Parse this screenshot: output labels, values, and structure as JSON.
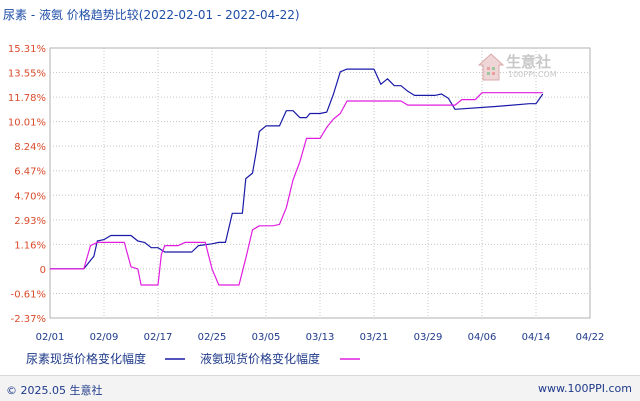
{
  "chart_data": {
    "type": "line",
    "title": "尿素 - 液氨 价格趋势比较(2022-02-01 - 2022-04-22)",
    "x_tick_labels": [
      "02/01",
      "02/09",
      "02/17",
      "02/25",
      "03/05",
      "03/13",
      "03/21",
      "03/29",
      "04/06",
      "04/14",
      "04/22"
    ],
    "y_tick_labels": [
      "15.31%",
      "13.55%",
      "11.78%",
      "10.01%",
      "8.24%",
      "6.47%",
      "4.70%",
      "2.93%",
      "1.16%",
      "0",
      "-0.61%",
      "-2.37%"
    ],
    "y_tick_values": [
      15.31,
      13.55,
      11.78,
      10.01,
      8.24,
      6.47,
      4.7,
      2.93,
      1.16,
      0,
      -0.61,
      -2.37
    ],
    "ylim": [
      -2.37,
      15.31
    ],
    "grid": true,
    "legend_position": "bottom",
    "series": [
      {
        "name": "尿素现货价格变化幅度",
        "color": "#1a1aa8",
        "points": [
          [
            0,
            0
          ],
          [
            5,
            0
          ],
          [
            6,
            0.4
          ],
          [
            6.5,
            0.6
          ],
          [
            7,
            1.4
          ],
          [
            8,
            1.5
          ],
          [
            9,
            1.8
          ],
          [
            10,
            1.8
          ],
          [
            11,
            1.8
          ],
          [
            12,
            1.8
          ],
          [
            13,
            1.4
          ],
          [
            14,
            1.3
          ],
          [
            15,
            1.0
          ],
          [
            16,
            1.0
          ],
          [
            17,
            0.8
          ],
          [
            18,
            0.8
          ],
          [
            19,
            0.8
          ],
          [
            20,
            0.8
          ],
          [
            21,
            0.8
          ],
          [
            22,
            1.1
          ],
          [
            24,
            1.2
          ],
          [
            25,
            1.3
          ],
          [
            26,
            1.3
          ],
          [
            27,
            3.4
          ],
          [
            28,
            3.4
          ],
          [
            28.5,
            3.4
          ],
          [
            29,
            5.9
          ],
          [
            30,
            6.3
          ],
          [
            30.5,
            7.7
          ],
          [
            31,
            9.3
          ],
          [
            32,
            9.7
          ],
          [
            33,
            9.7
          ],
          [
            34,
            9.7
          ],
          [
            35,
            10.8
          ],
          [
            36,
            10.8
          ],
          [
            37,
            10.3
          ],
          [
            38,
            10.3
          ],
          [
            38.5,
            10.6
          ],
          [
            40,
            10.6
          ],
          [
            41,
            10.7
          ],
          [
            42,
            12.0
          ],
          [
            43,
            13.6
          ],
          [
            44,
            13.8
          ],
          [
            47,
            13.8
          ],
          [
            48,
            13.8
          ],
          [
            49,
            12.7
          ],
          [
            50,
            13.1
          ],
          [
            51,
            12.6
          ],
          [
            52,
            12.6
          ],
          [
            53,
            12.2
          ],
          [
            54,
            11.9
          ],
          [
            57,
            11.9
          ],
          [
            58,
            12.0
          ],
          [
            59,
            11.7
          ],
          [
            60,
            10.9
          ],
          [
            66,
            11.1
          ],
          [
            71,
            11.3
          ],
          [
            72,
            11.3
          ],
          [
            73,
            12.0
          ]
        ]
      },
      {
        "name": "液氨现货价格变化幅度",
        "color": "#e01ee0",
        "points": [
          [
            0,
            0
          ],
          [
            5,
            0
          ],
          [
            6,
            1.1
          ],
          [
            7,
            1.3
          ],
          [
            8,
            1.3
          ],
          [
            10,
            1.3
          ],
          [
            11,
            1.3
          ],
          [
            12,
            0.1
          ],
          [
            13,
            0
          ],
          [
            13.5,
            -0.4
          ],
          [
            15,
            -0.4
          ],
          [
            16,
            -0.4
          ],
          [
            16.5,
            0.7
          ],
          [
            17,
            1.1
          ],
          [
            18,
            1.1
          ],
          [
            19,
            1.1
          ],
          [
            20,
            1.3
          ],
          [
            22,
            1.3
          ],
          [
            23,
            1.3
          ],
          [
            24,
            0
          ],
          [
            25,
            -0.4
          ],
          [
            28,
            -0.4
          ],
          [
            29,
            0.5
          ],
          [
            30,
            2.2
          ],
          [
            31,
            2.5
          ],
          [
            33,
            2.5
          ],
          [
            34,
            2.6
          ],
          [
            35,
            3.8
          ],
          [
            36,
            5.8
          ],
          [
            37,
            7.1
          ],
          [
            38,
            8.8
          ],
          [
            40,
            8.8
          ],
          [
            41,
            9.6
          ],
          [
            42,
            10.2
          ],
          [
            43,
            10.6
          ],
          [
            44,
            11.5
          ],
          [
            45,
            11.5
          ],
          [
            52,
            11.5
          ],
          [
            53,
            11.2
          ],
          [
            60,
            11.2
          ],
          [
            61,
            11.6
          ],
          [
            62,
            11.6
          ],
          [
            63,
            11.6
          ],
          [
            64,
            12.1
          ],
          [
            73,
            12.1
          ]
        ]
      }
    ]
  },
  "watermark": {
    "name_cn": "生意社",
    "name_en": "100PPI.COM",
    "logo_icon": "house-logo-icon"
  },
  "footer": {
    "copyright": "© 2025.05 生意社",
    "url": "www.100PPI.com"
  }
}
